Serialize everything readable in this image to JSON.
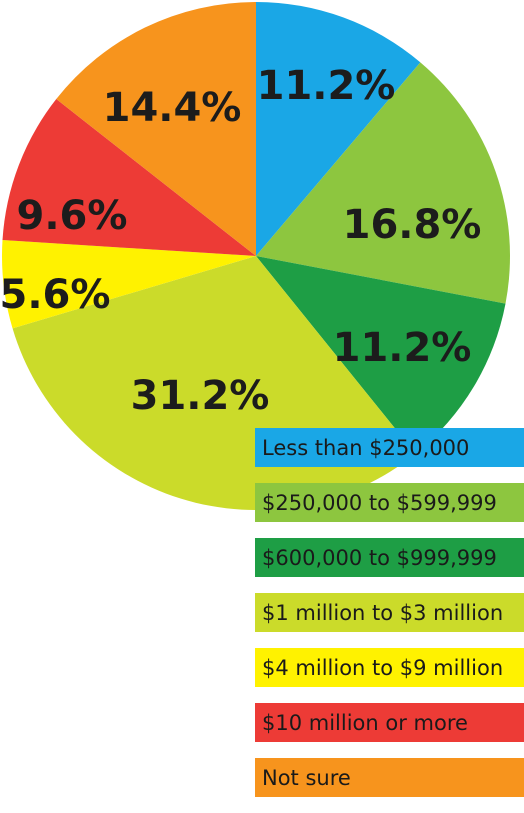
{
  "chart_data": {
    "type": "pie",
    "title": "",
    "unit": "%",
    "slices": [
      {
        "label": "Less than $250,000",
        "value": 11.2,
        "display": "11.2%",
        "color": "#1aa7e6"
      },
      {
        "label": "$250,000 to $599,999",
        "value": 16.8,
        "display": "16.8%",
        "color": "#8dc63f"
      },
      {
        "label": "$600,000 to $999,999",
        "value": 11.2,
        "display": "11.2%",
        "color": "#1e9e45"
      },
      {
        "label": "$1 million to $3 million",
        "value": 31.2,
        "display": "31.2%",
        "color": "#cbdb2a"
      },
      {
        "label": "$4 million to $9 million",
        "value": 5.6,
        "display": "5.6%",
        "color": "#fff200"
      },
      {
        "label": "$10 million or more",
        "value": 9.6,
        "display": "9.6%",
        "color": "#ed3b36"
      },
      {
        "label": "Not sure",
        "value": 14.4,
        "display": "14.4%",
        "color": "#f7941d"
      }
    ],
    "legend_placement": "bottom-right",
    "start_angle": "12 o'clock",
    "direction": "clockwise"
  }
}
